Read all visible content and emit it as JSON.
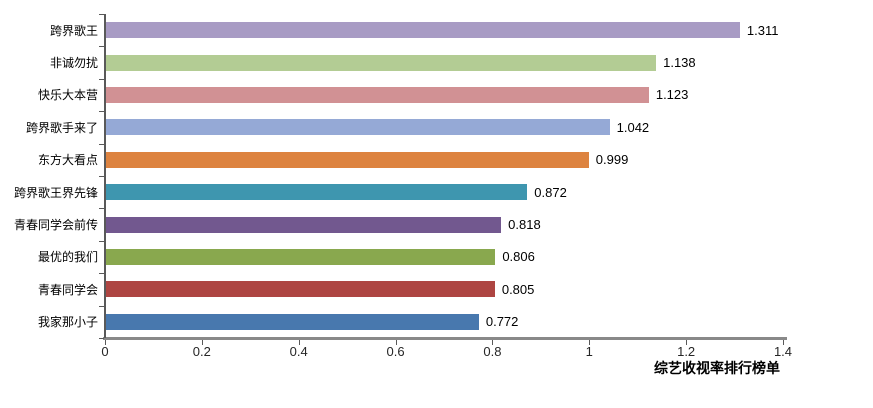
{
  "chart_data": {
    "type": "bar",
    "orientation": "horizontal",
    "title": "综艺收视率排行榜单",
    "categories": [
      "跨界歌王",
      "非诚勿扰",
      "快乐大本营",
      "跨界歌手来了",
      "东方大看点",
      "跨界歌王界先锋",
      "青春同学会前传",
      "最优的我们",
      "青春同学会",
      "我家那小子"
    ],
    "values": [
      1.311,
      1.138,
      1.123,
      1.042,
      0.999,
      0.872,
      0.818,
      0.806,
      0.805,
      0.772
    ],
    "value_labels": [
      "1.311",
      "1.138",
      "1.123",
      "1.042",
      "0.999",
      "0.872",
      "0.818",
      "0.806",
      "0.805",
      "0.772"
    ],
    "bar_colors": [
      "#A89BC4",
      "#B3CC94",
      "#D19194",
      "#95A9D6",
      "#DD8340",
      "#3E96AF",
      "#72588F",
      "#89A84E",
      "#AE4542",
      "#4878AE"
    ],
    "xlabel": "",
    "ylabel": "",
    "xlim": [
      0,
      1.4
    ],
    "x_ticks": [
      0,
      0.2,
      0.4,
      0.6,
      0.8,
      1,
      1.2,
      1.4
    ],
    "x_tick_labels": [
      "0",
      "0.2",
      "0.4",
      "0.6",
      "0.8",
      "1",
      "1.2",
      "1.4"
    ],
    "grid": false,
    "legend": false,
    "axis_color": "#898989",
    "tick_color": "#595959",
    "title_position": "bottom-right"
  }
}
